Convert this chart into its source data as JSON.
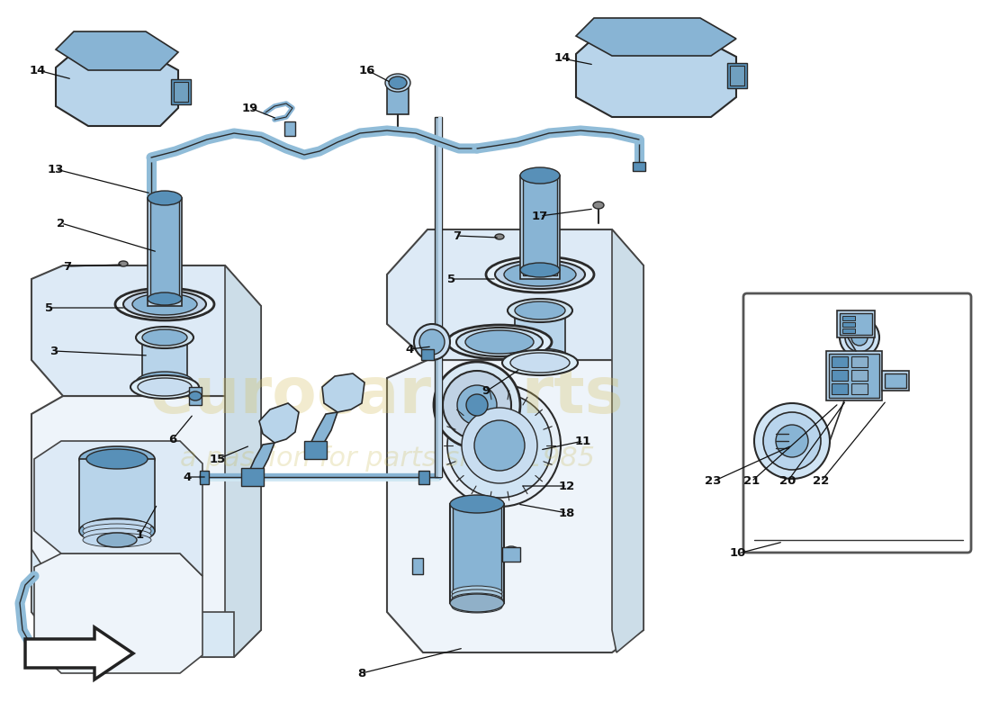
{
  "bg_color": "#ffffff",
  "pc_light": "#b8d4ea",
  "pc_mid": "#88b4d4",
  "pc_dark": "#5890b8",
  "pc_outline": "#2a2a2a",
  "tank_fill": "#eef4fa",
  "tank_edge": "#444444",
  "tube_fill": "#90bcd8",
  "tube_edge": "#333333",
  "wm_color1": "#d4c060",
  "wm_color2": "#c8b850",
  "label_color": "#111111",
  "line_color": "#222222"
}
